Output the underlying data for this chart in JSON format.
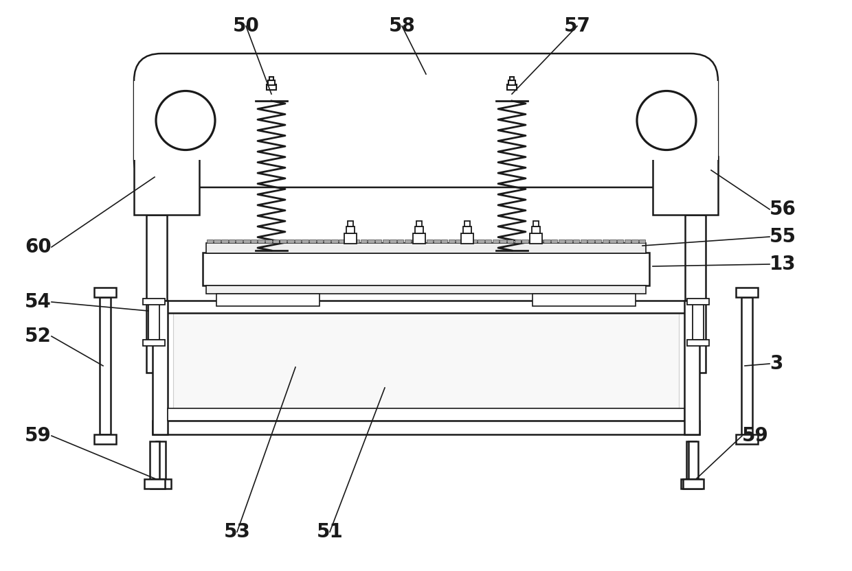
{
  "background_color": "#ffffff",
  "line_color": "#1a1a1a",
  "figsize": [
    12.4,
    8.32
  ],
  "dpi": 100,
  "label_fontsize": 20,
  "label_fontweight": "bold"
}
